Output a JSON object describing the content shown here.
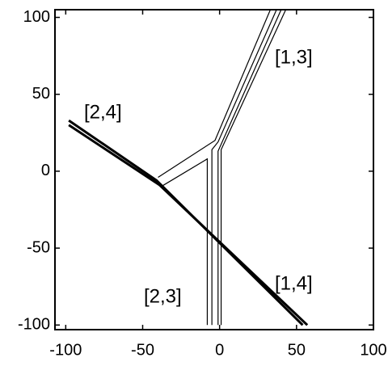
{
  "chart_data": {
    "type": "line",
    "annotations": [
      "[1,3]",
      "[2,4]",
      "[2,3]",
      "[1,4]"
    ],
    "xlim": [
      -107,
      100
    ],
    "ylim": [
      -103,
      105
    ],
    "xticks": [
      -100,
      -50,
      0,
      50,
      100
    ],
    "yticks": [
      -100,
      -50,
      0,
      50,
      100
    ],
    "series": [
      {
        "color": "#000000",
        "line_width": 3,
        "x": [
          -98,
          -41,
          54
        ],
        "y": [
          33,
          -6,
          -100
        ]
      },
      {
        "color": "#000000",
        "line_width": 3,
        "x": [
          -98,
          -39,
          57
        ],
        "y": [
          30,
          -9,
          -100
        ]
      },
      {
        "color": "#000000",
        "line_width": 1.2,
        "x": [
          -40,
          -3,
          33
        ],
        "y": [
          -4,
          20,
          105
        ]
      },
      {
        "color": "#000000",
        "line_width": 1.2,
        "x": [
          -38,
          -8,
          -8
        ],
        "y": [
          -10,
          8,
          -100
        ]
      },
      {
        "color": "#000000",
        "line_width": 1.2,
        "x": [
          -5,
          -5,
          -1,
          37
        ],
        "y": [
          -100,
          14,
          19,
          105
        ]
      },
      {
        "color": "#000000",
        "line_width": 1.2,
        "x": [
          -1,
          -1,
          40
        ],
        "y": [
          -100,
          13,
          105
        ]
      },
      {
        "color": "#000000",
        "line_width": 1.2,
        "x": [
          1,
          1,
          43
        ],
        "y": [
          -100,
          14,
          105
        ]
      }
    ]
  }
}
